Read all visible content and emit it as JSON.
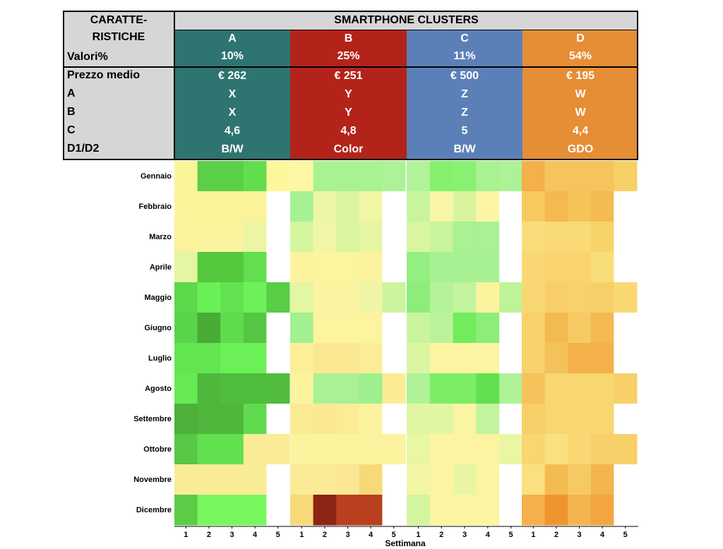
{
  "table": {
    "header_left": [
      "CARATTE-",
      "RISTICHE",
      "Valori%"
    ],
    "title": "SMARTPHONE CLUSTERS",
    "row_labels": [
      "Prezzo medio",
      "A",
      "B",
      "C",
      "D1/D2"
    ],
    "clusters": [
      {
        "name": "A",
        "share": "10%",
        "color": "#2e7471",
        "values": [
          "€ 262",
          "X",
          "X",
          "4,6",
          "B/W"
        ]
      },
      {
        "name": "B",
        "share": "25%",
        "color": "#b3231a",
        "values": [
          "€ 251",
          "Y",
          "Y",
          "4,8",
          "Color"
        ]
      },
      {
        "name": "C",
        "share": "11%",
        "color": "#5b80b8",
        "values": [
          "€ 500",
          "Z",
          "Z",
          "5",
          "B/W"
        ]
      },
      {
        "name": "D",
        "share": "54%",
        "color": "#e58e35",
        "values": [
          "€ 195",
          "W",
          "W",
          "4,4",
          "GDO"
        ]
      }
    ]
  },
  "chart_data": {
    "type": "heatmap",
    "rows": [
      "Gennaio",
      "Febbraio",
      "Marzo",
      "Aprile",
      "Maggio",
      "Giugno",
      "Luglio",
      "Agosto",
      "Settembre",
      "Ottobre",
      "Novembre",
      "Dicembre"
    ],
    "week_labels": [
      "1",
      "2",
      "3",
      "4",
      "5"
    ],
    "xlabel": "Settimana",
    "groups": [
      {
        "cluster": "A",
        "cells": [
          [
            "#fbf59a",
            "#5ccf48",
            "#5ccf48",
            "#63dc4d",
            "#fdf79c"
          ],
          [
            "#fbf39a",
            "#fbf39a",
            "#fbf39a",
            "#fbf39a",
            "#ffffff"
          ],
          [
            "#faf29c",
            "#faf29c",
            "#faf29c",
            "#ecf5a3",
            "#ffffff"
          ],
          [
            "#e5f6a2",
            "#55c83e",
            "#55c83e",
            "#62de4e",
            "#ffffff"
          ],
          [
            "#5cd84a",
            "#6af057",
            "#62e24f",
            "#6cf258",
            "#58cd45"
          ],
          [
            "#5ad44a",
            "#48ab34",
            "#5fdc4d",
            "#56c544",
            "#ffffff"
          ],
          [
            "#62e650",
            "#64e451",
            "#6cf058",
            "#6cf058",
            "#ffffff"
          ],
          [
            "#66ea53",
            "#4eb83c",
            "#4fbd3d",
            "#4fbd3d",
            "#51bc3e"
          ],
          [
            "#4db03b",
            "#4fb83c",
            "#4fb83c",
            "#60da4e",
            "#ffffff"
          ],
          [
            "#58c746",
            "#62e050",
            "#62e050",
            "#faec96",
            "#faec96"
          ],
          [
            "#faec96",
            "#faec96",
            "#faec96",
            "#faec96",
            "#ffffff"
          ],
          [
            "#5ccc48",
            "#78f65e",
            "#78f65e",
            "#78f65e",
            "#ffffff"
          ]
        ]
      },
      {
        "cluster": "B",
        "cells": [
          [
            "#fdf7a3",
            "#a8f290",
            "#a8f290",
            "#a8f290",
            "#aef196"
          ],
          [
            "#a6f292",
            "#eef6a6",
            "#dbf5a0",
            "#f1f6a5",
            "#ffffff"
          ],
          [
            "#d4f59d",
            "#f0f6a5",
            "#daf6a0",
            "#e6f6a3",
            "#ffffff"
          ],
          [
            "#fbf39d",
            "#fbf59f",
            "#fbf59f",
            "#fcf39e",
            "#ffffff"
          ],
          [
            "#e3f6a1",
            "#fbf39f",
            "#fbf39f",
            "#f0f5a5",
            "#ccf49c"
          ],
          [
            "#a2f090",
            "#fcf49f",
            "#fcf49f",
            "#fcf49f",
            "#ffffff"
          ],
          [
            "#fcef98",
            "#fbe893",
            "#fbe893",
            "#fcee98",
            "#ffffff"
          ],
          [
            "#fcf39e",
            "#a9f194",
            "#a9f194",
            "#9ef08d",
            "#fbeb95"
          ],
          [
            "#fbeb95",
            "#fbe893",
            "#fbec96",
            "#fcf39e",
            "#ffffff"
          ],
          [
            "#fcf39e",
            "#fcf39e",
            "#fcf39e",
            "#fcf39e",
            "#fcf39e"
          ],
          [
            "#fbeb96",
            "#fbeb96",
            "#fbe794",
            "#f7d978",
            "#ffffff"
          ],
          [
            "#f7d97a",
            "#8e2413",
            "#b8401f",
            "#b8401f",
            "#ffffff"
          ]
        ]
      },
      {
        "cluster": "C",
        "cells": [
          [
            "#b2f29a",
            "#84f06c",
            "#8af072",
            "#a8f290",
            "#aef196"
          ],
          [
            "#c8f4a0",
            "#f8f6a6",
            "#d8f59e",
            "#fcf6a4",
            "#ffffff"
          ],
          [
            "#d9f5a0",
            "#c8f49c",
            "#a9f193",
            "#a9f193",
            "#ffffff"
          ],
          [
            "#92ef80",
            "#a8f193",
            "#a8f193",
            "#a8f193",
            "#ffffff"
          ],
          [
            "#8eec7a",
            "#b3f299",
            "#c3f39d",
            "#fcf39e",
            "#bdf49a"
          ],
          [
            "#c9f49e",
            "#bbf39b",
            "#72ec5c",
            "#8ced78",
            "#ffffff"
          ],
          [
            "#dcf5a1",
            "#fcf4a1",
            "#fcf4a1",
            "#fcf4a1",
            "#ffffff"
          ],
          [
            "#b0f298",
            "#7ded66",
            "#7ded66",
            "#62e04f",
            "#b0f298"
          ],
          [
            "#e1f6a3",
            "#e1f6a3",
            "#f9f5a3",
            "#c2f39d",
            "#ffffff"
          ],
          [
            "#e9f6a4",
            "#fcf4a1",
            "#fcf4a1",
            "#fcf4a1",
            "#ebf6a5"
          ],
          [
            "#f3f6a5",
            "#fcf4a1",
            "#e8f6a4",
            "#fcf4a1",
            "#ffffff"
          ],
          [
            "#d3f59f",
            "#fcf4a1",
            "#fcf4a1",
            "#fcf4a1",
            "#ffffff"
          ]
        ]
      },
      {
        "cluster": "D",
        "cells": [
          [
            "#f4b04a",
            "#f5c45c",
            "#f5c45c",
            "#f5c45c",
            "#f7d066"
          ],
          [
            "#f6ca5f",
            "#f4b950",
            "#f5c357",
            "#f4bb52",
            "#ffffff"
          ],
          [
            "#fadd7a",
            "#f9da75",
            "#f9da75",
            "#f7d46a",
            "#ffffff"
          ],
          [
            "#f9d874",
            "#f9d46e",
            "#f9d46e",
            "#f9dd78",
            "#ffffff"
          ],
          [
            "#f9d874",
            "#f8ce6a",
            "#f8d16c",
            "#f7cf68",
            "#f9d874"
          ],
          [
            "#f8d16c",
            "#f4ba52",
            "#f6ca62",
            "#f4b952",
            "#ffffff"
          ],
          [
            "#f8d16c",
            "#f5c15a",
            "#f4b04a",
            "#f4b04a",
            "#ffffff"
          ],
          [
            "#f5c35b",
            "#f8d670",
            "#f8d670",
            "#f8d670",
            "#f7d069"
          ],
          [
            "#f7d069",
            "#f8d670",
            "#f8d670",
            "#f8d670",
            "#ffffff"
          ],
          [
            "#f8d670",
            "#fae07e",
            "#f9d874",
            "#f7d069",
            "#f7d069"
          ],
          [
            "#fae07e",
            "#f4bb53",
            "#f6ca62",
            "#f4b44e",
            "#ffffff"
          ],
          [
            "#f4b04a",
            "#f0952e",
            "#f4b44e",
            "#f3a640",
            "#ffffff"
          ]
        ]
      }
    ]
  }
}
